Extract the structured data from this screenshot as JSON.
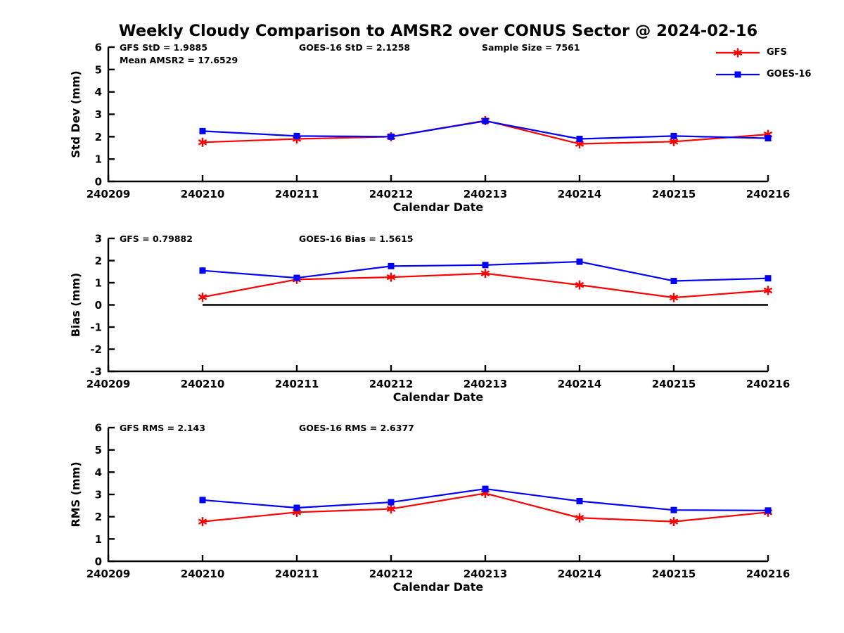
{
  "title": "Weekly Cloudy Comparison to AMSR2 over CONUS Sector @ 2024-02-16",
  "legend": {
    "position": "top-right",
    "entries": [
      {
        "label": "GFS",
        "color": "#ff0000",
        "marker": "asterisk"
      },
      {
        "label": "GOES-16",
        "color": "#0000ff",
        "marker": "square"
      }
    ]
  },
  "chart_data": [
    {
      "type": "line",
      "ylabel": "Std Dev (mm)",
      "xlabel": "Calendar Date",
      "ylim": [
        0,
        6
      ],
      "yticks": [
        0,
        1,
        2,
        3,
        4,
        5,
        6
      ],
      "x_labels": [
        "240209",
        "240210",
        "240211",
        "240212",
        "240213",
        "240214",
        "240215",
        "240216"
      ],
      "grid": false,
      "zero_line": false,
      "annotations": [
        "GFS StD = 1.9885",
        "GOES-16 StD = 2.1258",
        "Sample Size = 7561",
        "Mean AMSR2 = 17.6529"
      ],
      "series": [
        {
          "name": "GFS",
          "color": "#ff0000",
          "marker": "asterisk",
          "x": [
            "240210",
            "240211",
            "240212",
            "240213",
            "240214",
            "240215",
            "240216"
          ],
          "values": [
            1.75,
            1.9,
            2.0,
            2.72,
            1.68,
            1.78,
            2.1
          ]
        },
        {
          "name": "GOES-16",
          "color": "#0000ff",
          "marker": "square",
          "x": [
            "240210",
            "240211",
            "240212",
            "240213",
            "240214",
            "240215",
            "240216"
          ],
          "values": [
            2.25,
            2.03,
            2.0,
            2.7,
            1.9,
            2.03,
            1.93
          ]
        }
      ]
    },
    {
      "type": "line",
      "ylabel": "Bias (mm)",
      "xlabel": "Calendar Date",
      "ylim": [
        -3,
        3
      ],
      "yticks": [
        -3,
        -2,
        -1,
        0,
        1,
        2,
        3
      ],
      "x_labels": [
        "240209",
        "240210",
        "240211",
        "240212",
        "240213",
        "240214",
        "240215",
        "240216"
      ],
      "grid": false,
      "zero_line": true,
      "annotations": [
        "GFS = 0.79882",
        "GOES-16 Bias  = 1.5615"
      ],
      "series": [
        {
          "name": "GFS",
          "color": "#ff0000",
          "marker": "asterisk",
          "x": [
            "240210",
            "240211",
            "240212",
            "240213",
            "240214",
            "240215",
            "240216"
          ],
          "values": [
            0.35,
            1.15,
            1.25,
            1.42,
            0.9,
            0.33,
            0.65
          ]
        },
        {
          "name": "GOES-16",
          "color": "#0000ff",
          "marker": "square",
          "x": [
            "240210",
            "240211",
            "240212",
            "240213",
            "240214",
            "240215",
            "240216"
          ],
          "values": [
            1.55,
            1.22,
            1.75,
            1.8,
            1.95,
            1.08,
            1.2
          ]
        }
      ]
    },
    {
      "type": "line",
      "ylabel": "RMS (mm)",
      "xlabel": "Calendar Date",
      "ylim": [
        0,
        6
      ],
      "yticks": [
        0,
        1,
        2,
        3,
        4,
        5,
        6
      ],
      "x_labels": [
        "240209",
        "240210",
        "240211",
        "240212",
        "240213",
        "240214",
        "240215",
        "240216"
      ],
      "grid": false,
      "zero_line": false,
      "annotations": [
        "GFS RMS = 2.143",
        "GOES-16 RMS = 2.6377"
      ],
      "series": [
        {
          "name": "GFS",
          "color": "#ff0000",
          "marker": "asterisk",
          "x": [
            "240210",
            "240211",
            "240212",
            "240213",
            "240214",
            "240215",
            "240216"
          ],
          "values": [
            1.78,
            2.2,
            2.35,
            3.05,
            1.95,
            1.78,
            2.2
          ]
        },
        {
          "name": "GOES-16",
          "color": "#0000ff",
          "marker": "square",
          "x": [
            "240210",
            "240211",
            "240212",
            "240213",
            "240214",
            "240215",
            "240216"
          ],
          "values": [
            2.75,
            2.4,
            2.65,
            3.25,
            2.7,
            2.3,
            2.28
          ]
        }
      ]
    }
  ]
}
